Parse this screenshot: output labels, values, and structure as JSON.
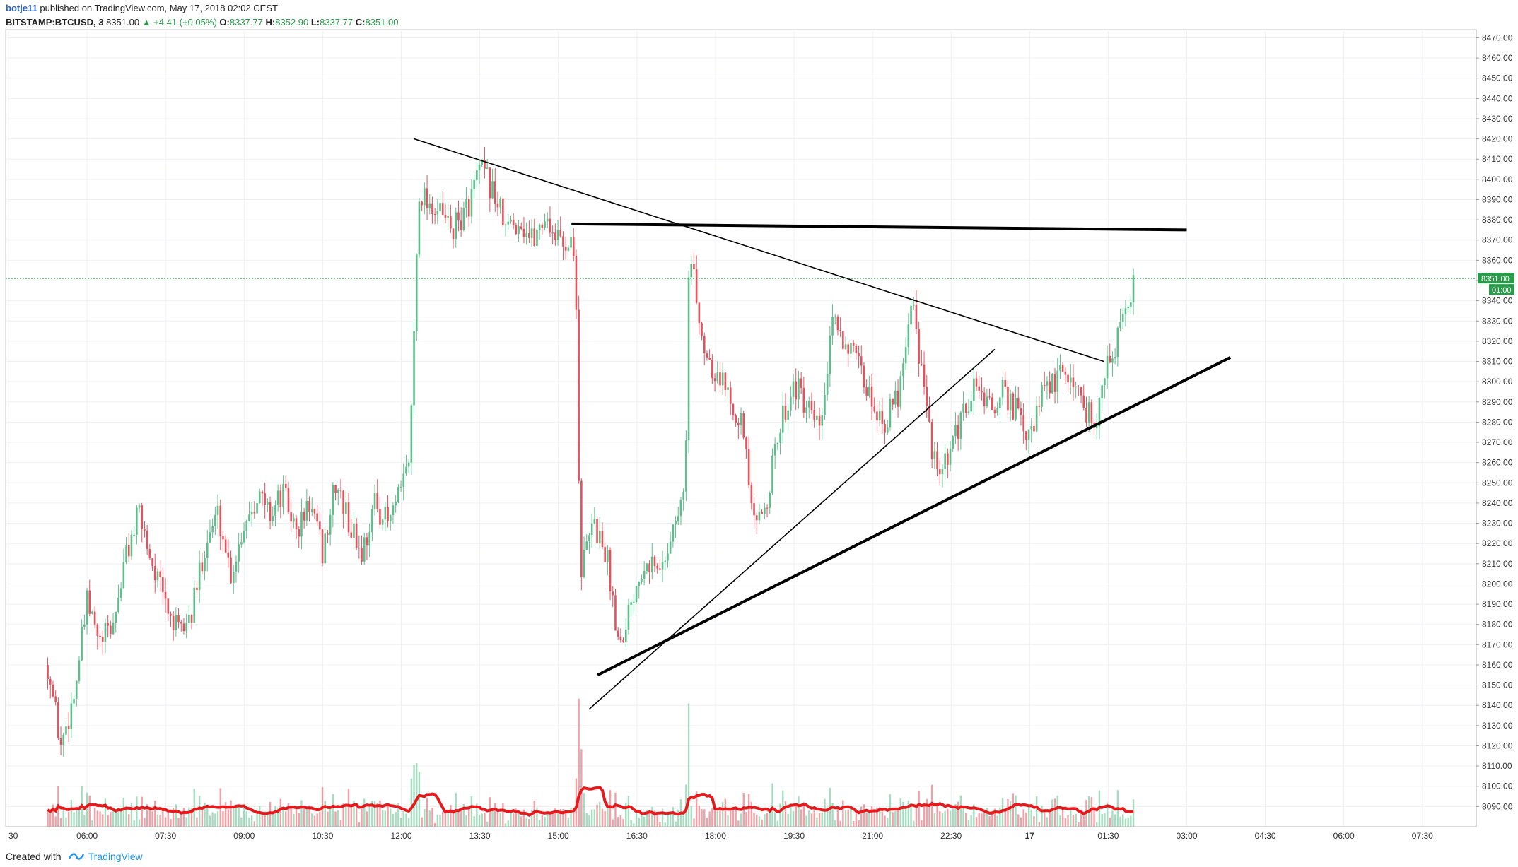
{
  "header": {
    "author": "botje11",
    "published": "published on TradingView.com, May 17, 2018 02:02 CEST",
    "symbol": "BITSTAMP:BTCUSD, 3",
    "last": "8351.00",
    "change": "▲ +4.41 (+0.05%)",
    "o_label": "O:",
    "o": "8337.77",
    "h_label": "H:",
    "h": "8352.90",
    "l_label": "L:",
    "l": "8337.77",
    "c_label": "C:",
    "c": "8351.00"
  },
  "footer": {
    "created": "Created with",
    "brand": "TradingView"
  },
  "colors": {
    "up": "#5cbf8a",
    "down": "#e8505b",
    "volume_ma": "#e41a1c",
    "price_line": "#2c9a4b",
    "trendline": "#000000"
  },
  "chart_data": {
    "type": "candlestick",
    "x_ticks": [
      "30",
      "06:00",
      "07:30",
      "09:00",
      "10:30",
      "12:00",
      "13:30",
      "15:00",
      "16:30",
      "18:00",
      "19:30",
      "21:00",
      "22:30",
      "17",
      "01:30",
      "03:00",
      "04:30",
      "06:00",
      "07:30"
    ],
    "y_ticks": [
      8090,
      8100,
      8110,
      8120,
      8130,
      8140,
      8150,
      8160,
      8170,
      8180,
      8190,
      8200,
      8210,
      8220,
      8230,
      8240,
      8250,
      8260,
      8270,
      8280,
      8290,
      8300,
      8310,
      8320,
      8330,
      8340,
      8350,
      8360,
      8370,
      8380,
      8390,
      8400,
      8410,
      8420,
      8430,
      8440,
      8450,
      8460,
      8470
    ],
    "y_tick_labels": [
      "8090.00",
      "8100.00",
      "8110.00",
      "8120.00",
      "8130.00",
      "8140.00",
      "8150.00",
      "8160.00",
      "8170.00",
      "8180.00",
      "8190.00",
      "8200.00",
      "8210.00",
      "8220.00",
      "8230.00",
      "8240.00",
      "8250.00",
      "8260.00",
      "8270.00",
      "8280.00",
      "8290.00",
      "8300.00",
      "8310.00",
      "8320.00",
      "8330.00",
      "8340.00",
      "8350.00",
      "8360.00",
      "8370.00",
      "8380.00",
      "8390.00",
      "8400.00",
      "8410.00",
      "8420.00",
      "8430.00",
      "8440.00",
      "8450.00",
      "8460.00",
      "8470.00"
    ],
    "ylim": [
      8080,
      8474
    ],
    "last_price": 8351.0,
    "last_price_label": "8351.00",
    "countdown_label": "01:00",
    "price_path": [
      [
        "05:15",
        8160
      ],
      [
        "05:30",
        8120
      ],
      [
        "05:45",
        8145
      ],
      [
        "06:00",
        8190
      ],
      [
        "06:15",
        8170
      ],
      [
        "06:30",
        8180
      ],
      [
        "06:45",
        8215
      ],
      [
        "07:00",
        8235
      ],
      [
        "07:15",
        8210
      ],
      [
        "07:30",
        8190
      ],
      [
        "07:45",
        8175
      ],
      [
        "08:00",
        8185
      ],
      [
        "08:15",
        8220
      ],
      [
        "08:30",
        8235
      ],
      [
        "08:45",
        8205
      ],
      [
        "09:00",
        8230
      ],
      [
        "09:15",
        8245
      ],
      [
        "09:30",
        8235
      ],
      [
        "09:45",
        8245
      ],
      [
        "10:00",
        8225
      ],
      [
        "10:15",
        8240
      ],
      [
        "10:30",
        8215
      ],
      [
        "10:45",
        8250
      ],
      [
        "11:00",
        8230
      ],
      [
        "11:15",
        8215
      ],
      [
        "11:30",
        8240
      ],
      [
        "11:45",
        8230
      ],
      [
        "12:00",
        8245
      ],
      [
        "12:10",
        8265
      ],
      [
        "12:20",
        8395
      ],
      [
        "12:40",
        8385
      ],
      [
        "13:00",
        8375
      ],
      [
        "13:15",
        8385
      ],
      [
        "13:30",
        8405
      ],
      [
        "13:45",
        8395
      ],
      [
        "14:00",
        8375
      ],
      [
        "14:15",
        8380
      ],
      [
        "14:30",
        8370
      ],
      [
        "14:45",
        8382
      ],
      [
        "15:00",
        8370
      ],
      [
        "15:15",
        8368
      ],
      [
        "15:20",
        8355
      ],
      [
        "15:25",
        8205
      ],
      [
        "15:40",
        8230
      ],
      [
        "15:55",
        8215
      ],
      [
        "16:10",
        8170
      ],
      [
        "16:25",
        8195
      ],
      [
        "16:40",
        8215
      ],
      [
        "16:55",
        8205
      ],
      [
        "17:10",
        8225
      ],
      [
        "17:25",
        8245
      ],
      [
        "17:30",
        8365
      ],
      [
        "17:45",
        8320
      ],
      [
        "18:00",
        8305
      ],
      [
        "18:15",
        8295
      ],
      [
        "18:30",
        8280
      ],
      [
        "18:45",
        8225
      ],
      [
        "19:00",
        8245
      ],
      [
        "19:15",
        8280
      ],
      [
        "19:30",
        8300
      ],
      [
        "19:45",
        8285
      ],
      [
        "20:00",
        8275
      ],
      [
        "20:15",
        8330
      ],
      [
        "20:30",
        8320
      ],
      [
        "20:45",
        8305
      ],
      [
        "21:00",
        8290
      ],
      [
        "21:15",
        8280
      ],
      [
        "21:30",
        8295
      ],
      [
        "21:45",
        8345
      ],
      [
        "22:00",
        8290
      ],
      [
        "22:15",
        8250
      ],
      [
        "22:30",
        8265
      ],
      [
        "22:45",
        8285
      ],
      [
        "23:00",
        8300
      ],
      [
        "23:15",
        8285
      ],
      [
        "23:30",
        8295
      ],
      [
        "23:45",
        8285
      ],
      [
        "00:00",
        8270
      ],
      [
        "00:15",
        8295
      ],
      [
        "00:30",
        8300
      ],
      [
        "00:45",
        8305
      ],
      [
        "01:00",
        8290
      ],
      [
        "01:15",
        8280
      ],
      [
        "01:30",
        8310
      ],
      [
        "01:45",
        8325
      ],
      [
        "02:00",
        8351
      ]
    ],
    "trendlines": [
      {
        "name": "descending",
        "from": [
          "12:15",
          8420
        ],
        "to": [
          "01:25",
          8310
        ],
        "style": "thin"
      },
      {
        "name": "horizontal-resistance",
        "from": [
          "15:15",
          8378
        ],
        "to": [
          "03:00",
          8375
        ],
        "style": "thick"
      },
      {
        "name": "ascending-support",
        "from": [
          "15:45",
          8155
        ],
        "to": [
          "03:50",
          8312
        ],
        "style": "thick"
      },
      {
        "name": "ascending-thin",
        "from": [
          "15:35",
          8138
        ],
        "to": [
          "23:20",
          8316
        ],
        "style": "thin"
      }
    ],
    "grid": true,
    "legend": "none"
  }
}
